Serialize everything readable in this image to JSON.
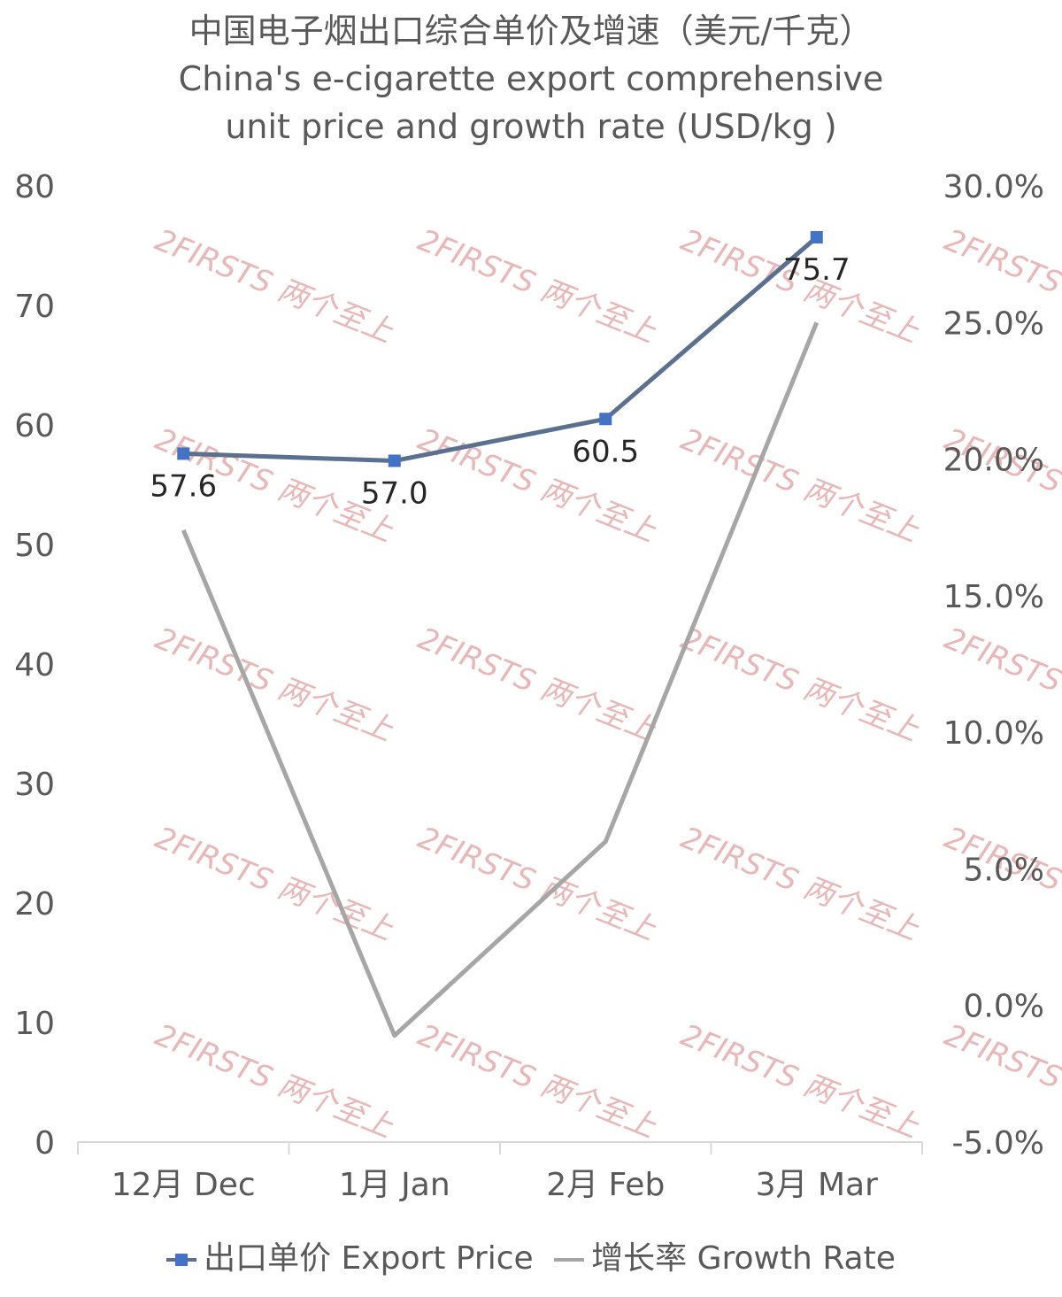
{
  "title_cn": "中国电子烟出口综合单价及增速（美元/千克）",
  "title_en_1": "China's e-cigarette export comprehensive",
  "title_en_2": "unit price and growth rate (USD/kg )",
  "watermark": "2FIRSTS 两个至上",
  "legend": {
    "price": "出口单价 Export Price",
    "growth": "增长率 Growth Rate"
  },
  "colors": {
    "price_line": "#5b6f8f",
    "price_marker": "#4472c4",
    "growth_line": "#a6a6a6",
    "axis": "#d9d9d9",
    "watermark": "#e9b7b7"
  },
  "chart_data": {
    "type": "line",
    "categories": [
      "12月 Dec",
      "1月 Jan",
      "2月 Feb",
      "3月 Mar"
    ],
    "series": [
      {
        "name": "出口单价 Export Price",
        "axis": "left",
        "values": [
          57.6,
          57.0,
          60.5,
          75.7
        ],
        "data_labels": [
          "57.6",
          "57.0",
          "60.5",
          "75.7"
        ]
      },
      {
        "name": "增长率 Growth Rate",
        "axis": "right",
        "values": [
          0.174,
          -0.011,
          0.06,
          0.25
        ]
      }
    ],
    "y_left": {
      "min": 0,
      "max": 80,
      "ticks": [
        "0",
        "10",
        "20",
        "30",
        "40",
        "50",
        "60",
        "70",
        "80"
      ]
    },
    "y_right": {
      "min": -0.05,
      "max": 0.3,
      "ticks": [
        "-5.0%",
        "0.0%",
        "5.0%",
        "10.0%",
        "15.0%",
        "20.0%",
        "25.0%",
        "30.0%"
      ]
    },
    "grid": false,
    "legend_position": "bottom"
  }
}
